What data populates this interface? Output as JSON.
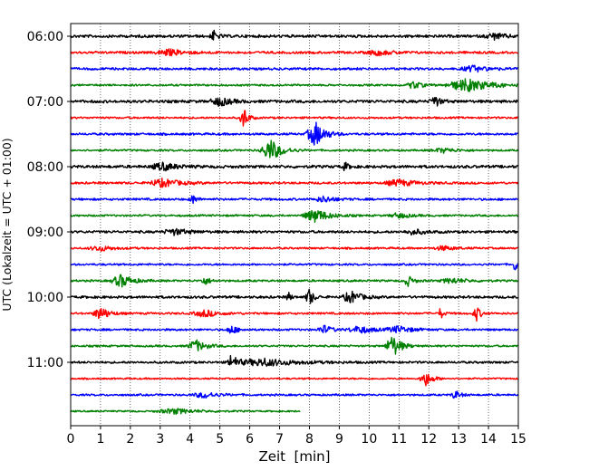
{
  "chart_data": {
    "type": "line",
    "title": "",
    "xlabel": "Zeit  [min]",
    "ylabel": "UTC (Lokalzeit = UTC + 01:00)",
    "xlim": [
      0,
      15
    ],
    "xticks": [
      0,
      1,
      2,
      3,
      4,
      5,
      6,
      7,
      8,
      9,
      10,
      11,
      12,
      13,
      14,
      15
    ],
    "yticks": [
      "06:00",
      "07:00",
      "08:00",
      "09:00",
      "10:00",
      "11:00"
    ],
    "grid": "vertical dotted",
    "legend": "none",
    "start_time": "06:00",
    "trace_interval_min": 15,
    "trace_colors": [
      "#000000",
      "#ff0000",
      "#0000ff",
      "#008000"
    ],
    "series": [
      {
        "start": "06:00",
        "end_min": 15,
        "baseline": 0.18,
        "events": [
          {
            "t": 4.8,
            "amp": 0.7,
            "dur": 0.15
          },
          {
            "t": 14.2,
            "amp": 0.4,
            "dur": 0.4
          }
        ]
      },
      {
        "start": "06:15",
        "end_min": 15,
        "baseline": 0.15,
        "events": [
          {
            "t": 3.3,
            "amp": 0.4,
            "dur": 0.6
          },
          {
            "t": 10.3,
            "amp": 0.35,
            "dur": 0.5
          }
        ]
      },
      {
        "start": "06:30",
        "end_min": 15,
        "baseline": 0.15,
        "events": [
          {
            "t": 13.5,
            "amp": 0.4,
            "dur": 0.5
          }
        ]
      },
      {
        "start": "06:45",
        "end_min": 15,
        "baseline": 0.12,
        "events": [
          {
            "t": 11.5,
            "amp": 0.5,
            "dur": 0.3
          },
          {
            "t": 13.3,
            "amp": 0.85,
            "dur": 0.9
          }
        ]
      },
      {
        "start": "07:00",
        "end_min": 15,
        "baseline": 0.18,
        "events": [
          {
            "t": 5.0,
            "amp": 0.6,
            "dur": 0.4
          },
          {
            "t": 12.2,
            "amp": 0.8,
            "dur": 0.2
          }
        ]
      },
      {
        "start": "07:15",
        "end_min": 15,
        "baseline": 0.12,
        "events": [
          {
            "t": 5.8,
            "amp": 1.6,
            "dur": 0.15
          }
        ]
      },
      {
        "start": "07:30",
        "end_min": 15,
        "baseline": 0.14,
        "events": [
          {
            "t": 8.2,
            "amp": 1.7,
            "dur": 0.35
          }
        ]
      },
      {
        "start": "07:45",
        "end_min": 15,
        "baseline": 0.12,
        "events": [
          {
            "t": 6.7,
            "amp": 1.5,
            "dur": 0.4
          },
          {
            "t": 12.5,
            "amp": 0.3,
            "dur": 0.5
          }
        ]
      },
      {
        "start": "08:00",
        "end_min": 15,
        "baseline": 0.18,
        "events": [
          {
            "t": 3.1,
            "amp": 0.5,
            "dur": 0.5
          },
          {
            "t": 9.2,
            "amp": 0.5,
            "dur": 0.15
          }
        ]
      },
      {
        "start": "08:15",
        "end_min": 15,
        "baseline": 0.14,
        "events": [
          {
            "t": 3.1,
            "amp": 0.55,
            "dur": 0.6
          },
          {
            "t": 11.0,
            "amp": 0.45,
            "dur": 0.6
          }
        ]
      },
      {
        "start": "08:30",
        "end_min": 15,
        "baseline": 0.14,
        "events": [
          {
            "t": 4.1,
            "amp": 0.6,
            "dur": 0.15
          },
          {
            "t": 8.5,
            "amp": 0.4,
            "dur": 0.4
          }
        ]
      },
      {
        "start": "08:45",
        "end_min": 15,
        "baseline": 0.12,
        "events": [
          {
            "t": 8.2,
            "amp": 0.9,
            "dur": 0.5
          },
          {
            "t": 11.0,
            "amp": 0.35,
            "dur": 0.4
          }
        ]
      },
      {
        "start": "09:00",
        "end_min": 15,
        "baseline": 0.16,
        "events": [
          {
            "t": 3.5,
            "amp": 0.4,
            "dur": 0.5
          },
          {
            "t": 11.5,
            "amp": 0.35,
            "dur": 0.4
          }
        ]
      },
      {
        "start": "09:15",
        "end_min": 15,
        "baseline": 0.12,
        "events": [
          {
            "t": 1.0,
            "amp": 0.35,
            "dur": 0.5
          },
          {
            "t": 12.5,
            "amp": 0.3,
            "dur": 0.4
          }
        ]
      },
      {
        "start": "09:30",
        "end_min": 15,
        "baseline": 0.12,
        "events": [
          {
            "t": 14.9,
            "amp": 1.1,
            "dur": 0.1
          }
        ]
      },
      {
        "start": "09:45",
        "end_min": 15,
        "baseline": 0.13,
        "events": [
          {
            "t": 1.7,
            "amp": 0.85,
            "dur": 0.4
          },
          {
            "t": 4.5,
            "amp": 0.5,
            "dur": 0.2
          },
          {
            "t": 11.3,
            "amp": 0.7,
            "dur": 0.2
          },
          {
            "t": 12.8,
            "amp": 0.35,
            "dur": 0.5
          }
        ]
      },
      {
        "start": "10:00",
        "end_min": 15,
        "baseline": 0.16,
        "events": [
          {
            "t": 7.3,
            "amp": 0.6,
            "dur": 0.1
          },
          {
            "t": 8.0,
            "amp": 1.2,
            "dur": 0.15
          },
          {
            "t": 9.4,
            "amp": 0.8,
            "dur": 0.35
          }
        ]
      },
      {
        "start": "10:15",
        "end_min": 15,
        "baseline": 0.13,
        "events": [
          {
            "t": 1.0,
            "amp": 0.9,
            "dur": 0.3
          },
          {
            "t": 4.5,
            "amp": 0.45,
            "dur": 0.5
          },
          {
            "t": 12.4,
            "amp": 0.8,
            "dur": 0.1
          },
          {
            "t": 13.6,
            "amp": 1.0,
            "dur": 0.15
          }
        ]
      },
      {
        "start": "10:30",
        "end_min": 15,
        "baseline": 0.13,
        "events": [
          {
            "t": 5.4,
            "amp": 0.6,
            "dur": 0.2
          },
          {
            "t": 8.5,
            "amp": 0.55,
            "dur": 0.3
          },
          {
            "t": 9.7,
            "amp": 0.5,
            "dur": 0.5
          },
          {
            "t": 11.0,
            "amp": 0.45,
            "dur": 0.5
          }
        ]
      },
      {
        "start": "10:45",
        "end_min": 15,
        "baseline": 0.12,
        "events": [
          {
            "t": 4.2,
            "amp": 0.8,
            "dur": 0.35
          },
          {
            "t": 10.8,
            "amp": 1.5,
            "dur": 0.3
          }
        ]
      },
      {
        "start": "11:00",
        "end_min": 15,
        "baseline": 0.14,
        "events": [
          {
            "t": 5.4,
            "amp": 1.3,
            "dur": 0.15
          },
          {
            "t": 6.5,
            "amp": 0.5,
            "dur": 1.2
          }
        ]
      },
      {
        "start": "11:15",
        "end_min": 15,
        "baseline": 0.1,
        "events": [
          {
            "t": 11.9,
            "amp": 1.0,
            "dur": 0.25
          }
        ]
      },
      {
        "start": "11:30",
        "end_min": 15,
        "baseline": 0.12,
        "events": [
          {
            "t": 4.5,
            "amp": 0.4,
            "dur": 0.5
          },
          {
            "t": 12.9,
            "amp": 0.55,
            "dur": 0.2
          }
        ]
      },
      {
        "start": "11:45",
        "end_min": 7.7,
        "baseline": 0.1,
        "events": [
          {
            "t": 3.5,
            "amp": 0.35,
            "dur": 0.8
          }
        ]
      }
    ]
  }
}
